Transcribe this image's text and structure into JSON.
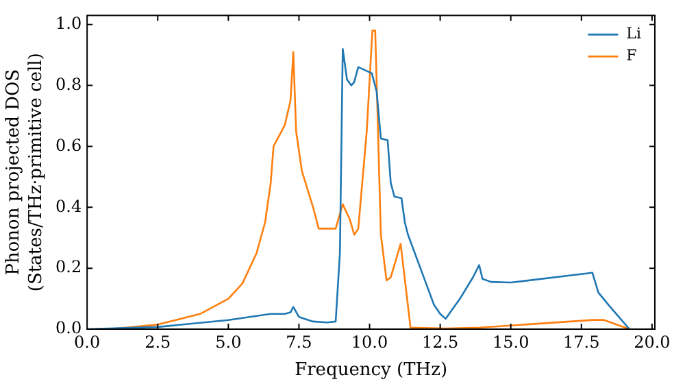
{
  "chart_data": {
    "type": "line",
    "xlabel": "Frequency (THz)",
    "ylabel": "Phonon projected DOS\n(States/THz·primitive cell)",
    "xlim": [
      0,
      20.1
    ],
    "ylim": [
      0,
      1.03
    ],
    "xticks": [
      {
        "value": 0,
        "label": "0.0"
      },
      {
        "value": 2.5,
        "label": "2.5"
      },
      {
        "value": 5,
        "label": "5.0"
      },
      {
        "value": 7.5,
        "label": "7.5"
      },
      {
        "value": 10,
        "label": "10.0"
      },
      {
        "value": 12.5,
        "label": "12.5"
      },
      {
        "value": 15,
        "label": "15.0"
      },
      {
        "value": 17.5,
        "label": "17.5"
      },
      {
        "value": 20,
        "label": "20.0"
      }
    ],
    "yticks": [
      {
        "value": 0,
        "label": "0.0"
      },
      {
        "value": 0.2,
        "label": "0.2"
      },
      {
        "value": 0.4,
        "label": "0.4"
      },
      {
        "value": 0.6,
        "label": "0.6"
      },
      {
        "value": 0.8,
        "label": "0.8"
      },
      {
        "value": 1,
        "label": "1.0"
      }
    ],
    "grid": false,
    "legend": "top right",
    "marker": "none",
    "line_style": "solid",
    "series": [
      {
        "name": "Li",
        "color": "#1f77b4",
        "x": [
          0,
          2.5,
          5,
          6.5,
          7,
          7.2,
          7.3,
          7.5,
          8,
          8.5,
          8.8,
          8.95,
          9.05,
          9.2,
          9.35,
          9.45,
          9.6,
          10.08,
          10.25,
          10.4,
          10.64,
          10.75,
          10.88,
          11.13,
          11.25,
          11.36,
          12.0,
          12.28,
          12.5,
          12.69,
          13.2,
          13.66,
          13.88,
          14.0,
          14.3,
          15,
          17.89,
          18.1,
          18.5,
          19.2
        ],
        "values": [
          0,
          0.007,
          0.03,
          0.05,
          0.05,
          0.055,
          0.073,
          0.04,
          0.025,
          0.022,
          0.025,
          0.25,
          0.92,
          0.82,
          0.8,
          0.81,
          0.86,
          0.84,
          0.78,
          0.626,
          0.62,
          0.48,
          0.435,
          0.43,
          0.35,
          0.31,
          0.15,
          0.08,
          0.05,
          0.034,
          0.1,
          0.17,
          0.21,
          0.165,
          0.155,
          0.153,
          0.185,
          0.12,
          0.075,
          0
        ]
      },
      {
        "name": "F",
        "color": "#ff7f0e",
        "x": [
          0.8,
          2.5,
          4,
          5,
          5.5,
          6,
          6.3,
          6.5,
          6.6,
          7,
          7.2,
          7.3,
          7.4,
          7.6,
          8.0,
          8.2,
          8.8,
          9.05,
          9.3,
          9.46,
          9.6,
          9.9,
          10.1,
          10.2,
          10.4,
          10.6,
          10.75,
          11.1,
          11.45,
          12.7,
          13.9,
          17.9,
          18.3,
          19.2
        ],
        "values": [
          0,
          0.015,
          0.05,
          0.1,
          0.15,
          0.25,
          0.35,
          0.48,
          0.6,
          0.67,
          0.75,
          0.91,
          0.65,
          0.52,
          0.4,
          0.33,
          0.33,
          0.41,
          0.36,
          0.31,
          0.33,
          0.65,
          0.98,
          0.98,
          0.31,
          0.16,
          0.17,
          0.28,
          0.005,
          0.002,
          0.005,
          0.03,
          0.03,
          0
        ]
      }
    ]
  }
}
